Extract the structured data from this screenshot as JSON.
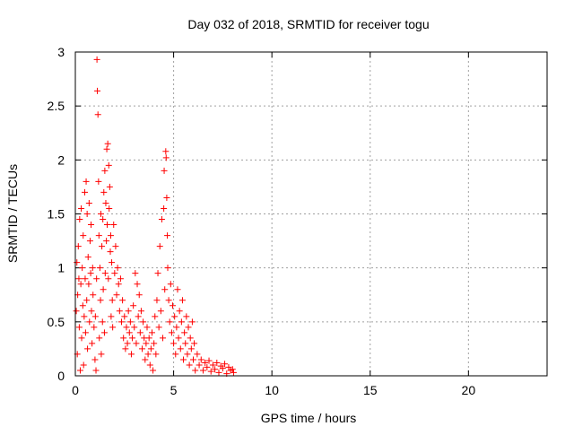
{
  "chart_data": {
    "type": "scatter",
    "title": "Day 032 of 2018, SRMTID for receiver togu",
    "xlabel": "GPS time / hours",
    "ylabel": "SRMTID / TECUs",
    "xlim": [
      0,
      24
    ],
    "ylim": [
      0,
      3
    ],
    "xticks": [
      0,
      5,
      10,
      15,
      20
    ],
    "xtick_labels": [
      "0",
      "5",
      "10",
      "15",
      "20"
    ],
    "yticks": [
      0,
      0.5,
      1,
      1.5,
      2,
      2.5,
      3
    ],
    "ytick_labels": [
      "0",
      "0.5",
      "1",
      "1.5",
      "2",
      "2.5",
      "3"
    ],
    "grid": true,
    "legend": "none",
    "marker": "plus",
    "color": "#ff0000",
    "series": [
      {
        "name": "SRMTID",
        "points": [
          [
            0.05,
            0.6
          ],
          [
            0.08,
            1.05
          ],
          [
            0.1,
            0.2
          ],
          [
            0.12,
            0.75
          ],
          [
            0.15,
            1.2
          ],
          [
            0.18,
            0.9
          ],
          [
            0.2,
            0.45
          ],
          [
            0.22,
            1.45
          ],
          [
            0.25,
            0.05
          ],
          [
            0.28,
            0.85
          ],
          [
            0.3,
            1.55
          ],
          [
            0.32,
            0.35
          ],
          [
            0.35,
            1.0
          ],
          [
            0.38,
            0.65
          ],
          [
            0.4,
            1.3
          ],
          [
            0.42,
            0.1
          ],
          [
            0.45,
            0.55
          ],
          [
            0.48,
            1.7
          ],
          [
            0.5,
            0.9
          ],
          [
            0.52,
            0.4
          ],
          [
            0.55,
            1.8
          ],
          [
            0.58,
            0.7
          ],
          [
            0.6,
            1.5
          ],
          [
            0.62,
            0.25
          ],
          [
            0.65,
            1.1
          ],
          [
            0.68,
            0.85
          ],
          [
            0.7,
            1.6
          ],
          [
            0.72,
            0.5
          ],
          [
            0.75,
            1.25
          ],
          [
            0.78,
            0.95
          ],
          [
            0.8,
            1.4
          ],
          [
            0.82,
            0.6
          ],
          [
            0.85,
            0.3
          ],
          [
            0.88,
            1.0
          ],
          [
            0.9,
            0.75
          ],
          [
            0.95,
            0.45
          ],
          [
            1.0,
            0.15
          ],
          [
            1.02,
            0.55
          ],
          [
            1.05,
            0.05
          ],
          [
            1.08,
            0.9
          ],
          [
            1.1,
            2.93
          ],
          [
            1.12,
            2.64
          ],
          [
            1.15,
            2.42
          ],
          [
            1.18,
            1.8
          ],
          [
            1.2,
            1.3
          ],
          [
            1.22,
            0.35
          ],
          [
            1.25,
            1.0
          ],
          [
            1.28,
            0.7
          ],
          [
            1.3,
            1.5
          ],
          [
            1.32,
            0.2
          ],
          [
            1.35,
            1.2
          ],
          [
            1.38,
            0.5
          ],
          [
            1.4,
            1.45
          ],
          [
            1.42,
            0.8
          ],
          [
            1.45,
            1.7
          ],
          [
            1.48,
            0.4
          ],
          [
            1.5,
            1.9
          ],
          [
            1.52,
            0.95
          ],
          [
            1.55,
            1.6
          ],
          [
            1.58,
            1.25
          ],
          [
            1.6,
            2.1
          ],
          [
            1.62,
            1.4
          ],
          [
            1.65,
            2.15
          ],
          [
            1.68,
            0.9
          ],
          [
            1.7,
            1.95
          ],
          [
            1.72,
            1.55
          ],
          [
            1.75,
            1.75
          ],
          [
            1.78,
            1.15
          ],
          [
            1.8,
            1.3
          ],
          [
            1.82,
            0.55
          ],
          [
            1.85,
            1.05
          ],
          [
            1.88,
            0.7
          ],
          [
            1.9,
            0.45
          ],
          [
            1.95,
            1.4
          ],
          [
            2.0,
            0.95
          ],
          [
            2.05,
            1.2
          ],
          [
            2.1,
            0.75
          ],
          [
            2.15,
            1.0
          ],
          [
            2.2,
            0.85
          ],
          [
            2.25,
            0.6
          ],
          [
            2.3,
            0.9
          ],
          [
            2.35,
            0.5
          ],
          [
            2.4,
            0.7
          ],
          [
            2.45,
            0.35
          ],
          [
            2.5,
            0.55
          ],
          [
            2.55,
            0.25
          ],
          [
            2.6,
            0.45
          ],
          [
            2.65,
            0.3
          ],
          [
            2.7,
            0.6
          ],
          [
            2.75,
            0.4
          ],
          [
            2.8,
            0.5
          ],
          [
            2.85,
            0.2
          ],
          [
            2.9,
            0.35
          ],
          [
            2.95,
            0.65
          ],
          [
            3.0,
            0.45
          ],
          [
            3.05,
            0.95
          ],
          [
            3.1,
            0.3
          ],
          [
            3.15,
            0.85
          ],
          [
            3.2,
            0.55
          ],
          [
            3.25,
            0.75
          ],
          [
            3.3,
            0.4
          ],
          [
            3.35,
            0.6
          ],
          [
            3.4,
            0.25
          ],
          [
            3.45,
            0.5
          ],
          [
            3.5,
            0.35
          ],
          [
            3.55,
            0.15
          ],
          [
            3.6,
            0.3
          ],
          [
            3.65,
            0.45
          ],
          [
            3.7,
            0.2
          ],
          [
            3.75,
            0.35
          ],
          [
            3.8,
            0.1
          ],
          [
            3.85,
            0.25
          ],
          [
            3.9,
            0.4
          ],
          [
            3.95,
            0.05
          ],
          [
            4.0,
            0.3
          ],
          [
            4.05,
            0.55
          ],
          [
            4.1,
            0.2
          ],
          [
            4.15,
            0.7
          ],
          [
            4.2,
            0.95
          ],
          [
            4.25,
            0.45
          ],
          [
            4.3,
            1.2
          ],
          [
            4.35,
            0.6
          ],
          [
            4.4,
            1.45
          ],
          [
            4.45,
            0.35
          ],
          [
            4.5,
            1.55
          ],
          [
            4.52,
            1.9
          ],
          [
            4.55,
            0.8
          ],
          [
            4.6,
            2.08
          ],
          [
            4.62,
            2.02
          ],
          [
            4.65,
            1.65
          ],
          [
            4.68,
            1.3
          ],
          [
            4.7,
            1.0
          ],
          [
            4.75,
            0.7
          ],
          [
            4.8,
            0.5
          ],
          [
            4.85,
            0.85
          ],
          [
            4.9,
            0.4
          ],
          [
            4.95,
            0.65
          ],
          [
            5.0,
            0.3
          ],
          [
            5.05,
            0.55
          ],
          [
            5.1,
            0.2
          ],
          [
            5.15,
            0.45
          ],
          [
            5.2,
            0.8
          ],
          [
            5.25,
            0.35
          ],
          [
            5.3,
            0.6
          ],
          [
            5.35,
            0.25
          ],
          [
            5.4,
            0.5
          ],
          [
            5.45,
            0.7
          ],
          [
            5.5,
            0.15
          ],
          [
            5.55,
            0.4
          ],
          [
            5.6,
            0.3
          ],
          [
            5.65,
            0.55
          ],
          [
            5.7,
            0.2
          ],
          [
            5.75,
            0.45
          ],
          [
            5.8,
            0.1
          ],
          [
            5.85,
            0.35
          ],
          [
            5.9,
            0.25
          ],
          [
            5.95,
            0.5
          ],
          [
            6.0,
            0.15
          ],
          [
            6.05,
            0.3
          ],
          [
            6.1,
            0.05
          ],
          [
            6.2,
            0.2
          ],
          [
            6.3,
            0.1
          ],
          [
            6.4,
            0.15
          ],
          [
            6.5,
            0.05
          ],
          [
            6.6,
            0.12
          ],
          [
            6.7,
            0.08
          ],
          [
            6.8,
            0.14
          ],
          [
            6.9,
            0.04
          ],
          [
            7.0,
            0.1
          ],
          [
            7.1,
            0.06
          ],
          [
            7.2,
            0.12
          ],
          [
            7.3,
            0.03
          ],
          [
            7.4,
            0.09
          ],
          [
            7.5,
            0.07
          ],
          [
            7.6,
            0.11
          ],
          [
            7.7,
            0.02
          ],
          [
            7.8,
            0.08
          ],
          [
            7.9,
            0.05
          ],
          [
            8.0,
            0.06
          ],
          [
            8.05,
            0.03
          ]
        ]
      }
    ]
  }
}
